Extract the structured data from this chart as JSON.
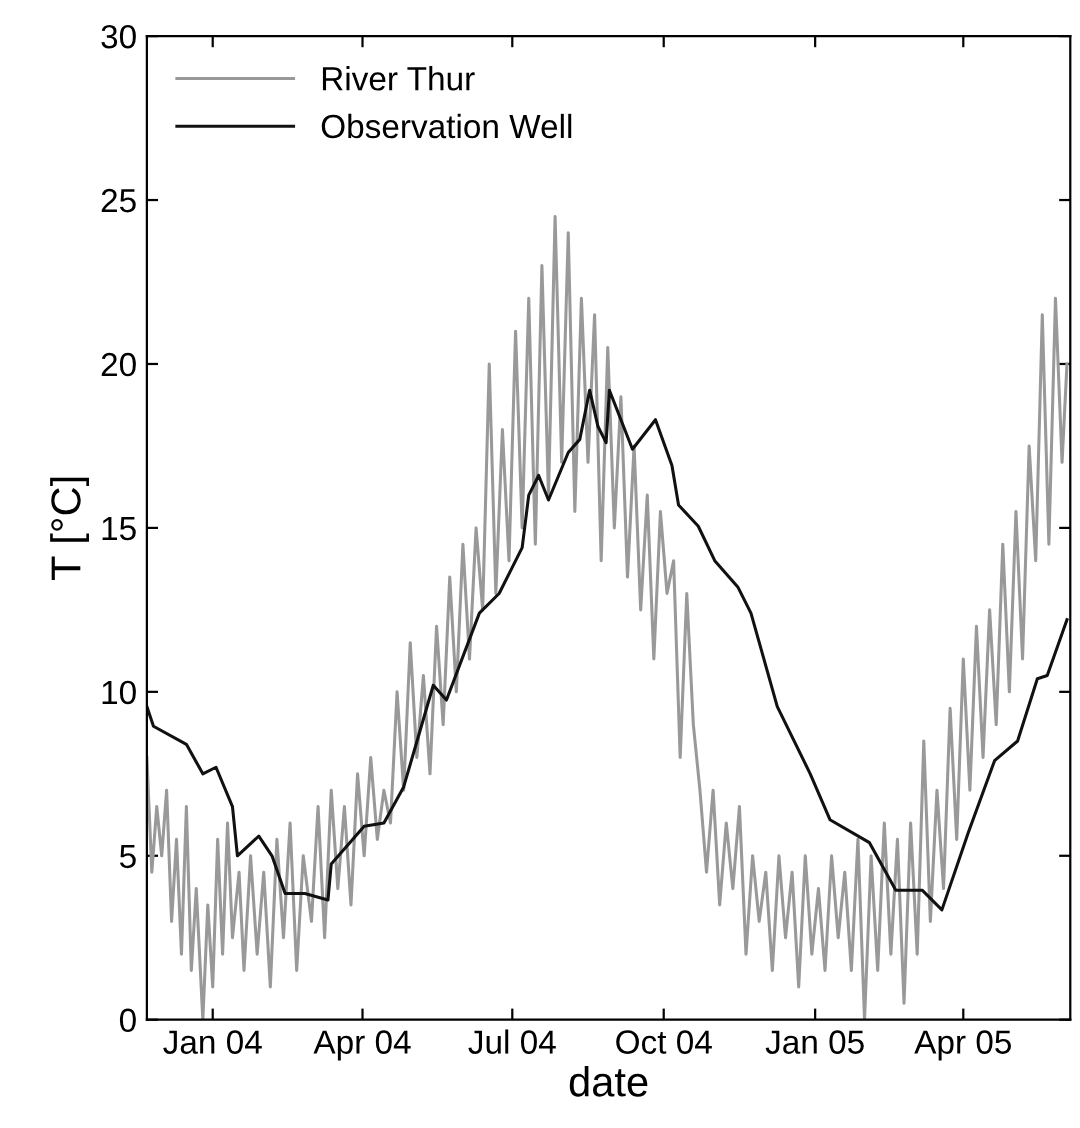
{
  "chart_data": {
    "type": "line",
    "xlabel": "date",
    "ylabel": "T [°C]",
    "legend": "top left",
    "grid": false,
    "line_style": "solid",
    "marker": "none",
    "xlim": [
      "2003-11-22",
      "2005-06-05"
    ],
    "ylim": [
      0,
      30
    ],
    "yticks": [
      0,
      5,
      10,
      15,
      20,
      25,
      30
    ],
    "xticks": [
      {
        "value": "2004-01-01",
        "label": "Jan 04"
      },
      {
        "value": "2004-04-01",
        "label": "Apr 04"
      },
      {
        "value": "2004-07-01",
        "label": "Jul 04"
      },
      {
        "value": "2004-10-01",
        "label": "Oct 04"
      },
      {
        "value": "2005-01-01",
        "label": "Jan 05"
      },
      {
        "value": "2005-04-01",
        "label": "Apr 05"
      }
    ],
    "series": [
      {
        "name": "River Thur",
        "color": "#999999",
        "x": [
          "2003-11-22",
          "2003-11-25",
          "2003-11-28",
          "2003-12-01",
          "2003-12-04",
          "2003-12-07",
          "2003-12-10",
          "2003-12-13",
          "2003-12-16",
          "2003-12-19",
          "2003-12-22",
          "2003-12-26",
          "2003-12-29",
          "2004-01-01",
          "2004-01-04",
          "2004-01-07",
          "2004-01-10",
          "2004-01-13",
          "2004-01-17",
          "2004-01-20",
          "2004-01-24",
          "2004-01-28",
          "2004-02-01",
          "2004-02-05",
          "2004-02-09",
          "2004-02-13",
          "2004-02-17",
          "2004-02-21",
          "2004-02-25",
          "2004-03-01",
          "2004-03-05",
          "2004-03-09",
          "2004-03-13",
          "2004-03-17",
          "2004-03-21",
          "2004-03-25",
          "2004-03-29",
          "2004-04-02",
          "2004-04-06",
          "2004-04-10",
          "2004-04-14",
          "2004-04-18",
          "2004-04-22",
          "2004-04-26",
          "2004-04-30",
          "2004-05-04",
          "2004-05-08",
          "2004-05-12",
          "2004-05-16",
          "2004-05-20",
          "2004-05-24",
          "2004-05-28",
          "2004-06-01",
          "2004-06-05",
          "2004-06-09",
          "2004-06-13",
          "2004-06-17",
          "2004-06-21",
          "2004-06-25",
          "2004-06-29",
          "2004-07-03",
          "2004-07-07",
          "2004-07-11",
          "2004-07-15",
          "2004-07-19",
          "2004-07-23",
          "2004-07-27",
          "2004-07-31",
          "2004-08-04",
          "2004-08-08",
          "2004-08-12",
          "2004-08-16",
          "2004-08-20",
          "2004-08-24",
          "2004-08-28",
          "2004-09-01",
          "2004-09-05",
          "2004-09-09",
          "2004-09-13",
          "2004-09-17",
          "2004-09-21",
          "2004-09-25",
          "2004-09-29",
          "2004-10-03",
          "2004-10-07",
          "2004-10-11",
          "2004-10-15",
          "2004-10-19",
          "2004-10-23",
          "2004-10-27",
          "2004-10-31",
          "2004-11-04",
          "2004-11-08",
          "2004-11-12",
          "2004-11-16",
          "2004-11-20",
          "2004-11-24",
          "2004-11-28",
          "2004-12-02",
          "2004-12-06",
          "2004-12-10",
          "2004-12-14",
          "2004-12-18",
          "2004-12-22",
          "2004-12-26",
          "2004-12-30",
          "2005-01-03",
          "2005-01-07",
          "2005-01-11",
          "2005-01-15",
          "2005-01-19",
          "2005-01-23",
          "2005-01-27",
          "2005-01-31",
          "2005-02-04",
          "2005-02-08",
          "2005-02-12",
          "2005-02-16",
          "2005-02-20",
          "2005-02-24",
          "2005-02-28",
          "2005-03-04",
          "2005-03-08",
          "2005-03-12",
          "2005-03-16",
          "2005-03-20",
          "2005-03-24",
          "2005-03-28",
          "2005-04-01",
          "2005-04-05",
          "2005-04-09",
          "2005-04-13",
          "2005-04-17",
          "2005-04-21",
          "2005-04-25",
          "2005-04-29",
          "2005-05-03",
          "2005-05-07",
          "2005-05-11",
          "2005-05-15",
          "2005-05-19",
          "2005-05-23",
          "2005-05-27",
          "2005-05-31",
          "2005-06-03"
        ],
        "values": [
          8.0,
          4.5,
          6.5,
          5.0,
          7.0,
          3.0,
          5.5,
          2.0,
          6.5,
          1.5,
          4.0,
          0.0,
          3.5,
          1.0,
          5.5,
          2.0,
          6.0,
          2.5,
          4.5,
          1.5,
          5.0,
          2.0,
          4.5,
          1.0,
          5.5,
          2.5,
          6.0,
          1.5,
          5.0,
          3.0,
          6.5,
          2.5,
          7.0,
          4.0,
          6.5,
          3.5,
          7.5,
          5.0,
          8.0,
          5.5,
          7.0,
          6.0,
          10.0,
          7.0,
          11.5,
          8.0,
          10.5,
          7.5,
          12.0,
          9.0,
          13.5,
          10.0,
          14.5,
          11.0,
          15.0,
          12.5,
          20.0,
          13.0,
          18.0,
          14.0,
          21.0,
          15.0,
          22.0,
          14.5,
          23.0,
          16.0,
          24.5,
          17.0,
          24.0,
          15.5,
          22.0,
          17.0,
          21.5,
          14.0,
          20.5,
          15.0,
          19.0,
          13.5,
          17.5,
          12.5,
          16.0,
          11.0,
          15.5,
          13.0,
          14.0,
          8.0,
          13.0,
          9.0,
          7.0,
          4.5,
          7.0,
          3.5,
          6.0,
          4.0,
          6.5,
          2.0,
          5.0,
          3.0,
          4.5,
          1.5,
          5.0,
          2.5,
          4.5,
          1.0,
          5.0,
          2.0,
          4.0,
          1.5,
          5.0,
          2.5,
          4.5,
          1.5,
          5.5,
          0.0,
          5.0,
          1.5,
          6.0,
          2.0,
          5.5,
          0.5,
          6.0,
          2.0,
          8.5,
          3.0,
          7.0,
          4.0,
          9.5,
          5.5,
          11.0,
          7.0,
          12.0,
          8.0,
          12.5,
          9.0,
          14.5,
          10.0,
          15.5,
          11.0,
          17.5,
          14.0,
          21.5,
          14.5,
          22.0,
          17.0,
          20.0
        ]
      },
      {
        "name": "Observation Well",
        "color": "#111111",
        "x": [
          "2003-11-22",
          "2003-11-26",
          "2003-12-16",
          "2003-12-26",
          "2004-01-03",
          "2004-01-13",
          "2004-01-16",
          "2004-01-29",
          "2004-02-06",
          "2004-02-14",
          "2004-02-26",
          "2004-03-11",
          "2004-03-13",
          "2004-04-02",
          "2004-04-14",
          "2004-04-26",
          "2004-05-14",
          "2004-05-22",
          "2004-06-11",
          "2004-06-23",
          "2004-07-07",
          "2004-07-11",
          "2004-07-17",
          "2004-07-23",
          "2004-08-04",
          "2004-08-11",
          "2004-08-17",
          "2004-08-22",
          "2004-08-27",
          "2004-08-29",
          "2004-09-12",
          "2004-09-26",
          "2004-10-06",
          "2004-10-10",
          "2004-10-22",
          "2004-11-01",
          "2004-11-15",
          "2004-11-23",
          "2004-12-09",
          "2004-12-29",
          "2005-01-10",
          "2005-02-03",
          "2005-02-19",
          "2005-03-07",
          "2005-03-19",
          "2005-04-04",
          "2005-04-20",
          "2005-05-04",
          "2005-05-16",
          "2005-05-22",
          "2005-06-03"
        ],
        "values": [
          9.55,
          8.95,
          8.4,
          7.5,
          7.7,
          6.5,
          5.0,
          5.6,
          5.0,
          3.85,
          3.85,
          3.65,
          4.75,
          5.9,
          6.0,
          7.1,
          10.2,
          9.75,
          12.4,
          13.0,
          14.4,
          16.0,
          16.6,
          15.85,
          17.3,
          17.7,
          19.2,
          18.1,
          17.6,
          19.2,
          17.4,
          18.3,
          16.9,
          15.7,
          15.05,
          14.0,
          13.2,
          12.4,
          9.55,
          7.5,
          6.1,
          5.4,
          3.95,
          3.95,
          3.35,
          5.7,
          7.9,
          8.5,
          10.4,
          10.5,
          12.2
        ]
      }
    ]
  }
}
